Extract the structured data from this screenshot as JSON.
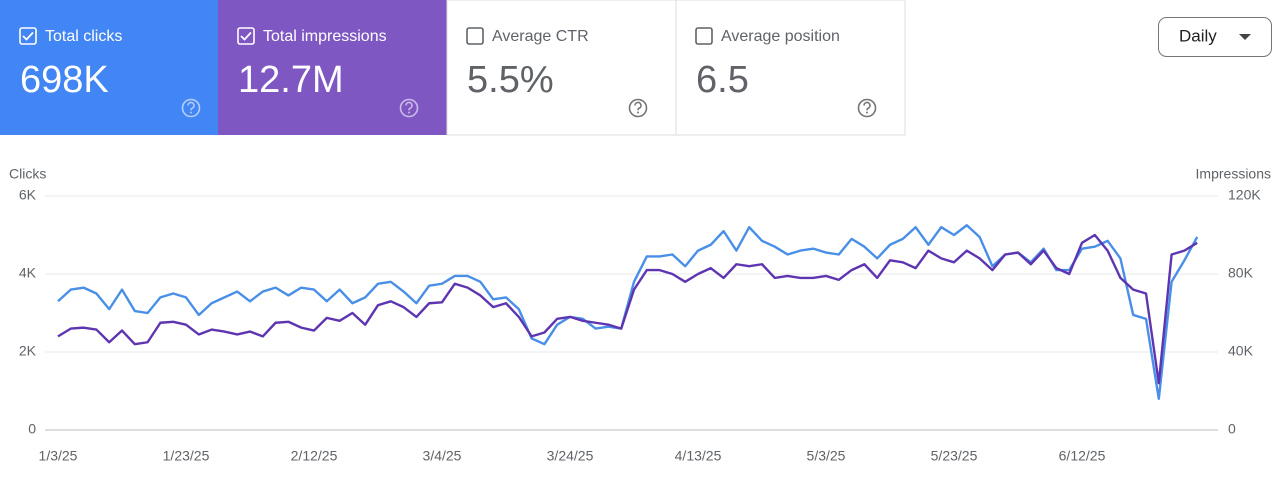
{
  "cards": [
    {
      "label": "Total clicks",
      "value": "698K",
      "checked": true,
      "color": "#4285f4"
    },
    {
      "label": "Total impressions",
      "value": "12.7M",
      "checked": true,
      "color": "#7e57c2"
    },
    {
      "label": "Average CTR",
      "value": "5.5%",
      "checked": false,
      "color": "#ffffff"
    },
    {
      "label": "Average position",
      "value": "6.5",
      "checked": false,
      "color": "#ffffff"
    }
  ],
  "period_selector": {
    "label": "Daily"
  },
  "chart_data": {
    "type": "line",
    "y_label": "Clicks",
    "y2_label": "Impressions",
    "x": [
      "1/3/25",
      "1/5/25",
      "1/7/25",
      "1/9/25",
      "1/11/25",
      "1/13/25",
      "1/15/25",
      "1/17/25",
      "1/19/25",
      "1/21/25",
      "1/23/25",
      "1/25/25",
      "1/27/25",
      "1/29/25",
      "1/31/25",
      "2/2/25",
      "2/4/25",
      "2/6/25",
      "2/8/25",
      "2/10/25",
      "2/12/25",
      "2/14/25",
      "2/16/25",
      "2/18/25",
      "2/20/25",
      "2/22/25",
      "2/24/25",
      "2/26/25",
      "2/28/25",
      "3/2/25",
      "3/4/25",
      "3/6/25",
      "3/8/25",
      "3/10/25",
      "3/12/25",
      "3/14/25",
      "3/16/25",
      "3/18/25",
      "3/20/25",
      "3/22/25",
      "3/24/25",
      "3/26/25",
      "3/28/25",
      "3/30/25",
      "4/1/25",
      "4/3/25",
      "4/5/25",
      "4/7/25",
      "4/9/25",
      "4/11/25",
      "4/13/25",
      "4/15/25",
      "4/17/25",
      "4/19/25",
      "4/21/25",
      "4/23/25",
      "4/25/25",
      "4/27/25",
      "4/29/25",
      "5/1/25",
      "5/3/25",
      "5/5/25",
      "5/7/25",
      "5/9/25",
      "5/11/25",
      "5/13/25",
      "5/15/25",
      "5/17/25",
      "5/19/25",
      "5/21/25",
      "5/23/25",
      "5/25/25",
      "5/27/25",
      "5/29/25",
      "5/31/25",
      "6/2/25",
      "6/4/25",
      "6/6/25",
      "6/8/25",
      "6/10/25",
      "6/12/25",
      "6/14/25",
      "6/16/25",
      "6/18/25",
      "6/20/25",
      "6/22/25",
      "6/24/25",
      "6/26/25",
      "6/28/25",
      "6/30/25"
    ],
    "xticks": [
      "1/3/25",
      "1/23/25",
      "2/12/25",
      "3/4/25",
      "3/24/25",
      "4/13/25",
      "5/3/25",
      "5/23/25",
      "6/12/25"
    ],
    "ylim": [
      0,
      6000
    ],
    "yticks": [
      0,
      {
        "value": 2000,
        "label": "2K"
      },
      {
        "value": 4000,
        "label": "4K"
      },
      {
        "value": 6000,
        "label": "6K"
      }
    ],
    "y2lim": [
      0,
      120000
    ],
    "y2ticks": [
      0,
      {
        "value": 40000,
        "label": "40K"
      },
      {
        "value": 80000,
        "label": "80K"
      },
      {
        "value": 120000,
        "label": "120K"
      }
    ],
    "grid": true,
    "series": [
      {
        "color": "#4a8fe7",
        "values": [
          3300,
          3600,
          3650,
          3500,
          3100,
          3600,
          3050,
          3000,
          3400,
          3500,
          3400,
          2950,
          3250,
          3400,
          3550,
          3300,
          3550,
          3650,
          3450,
          3650,
          3600,
          3300,
          3600,
          3250,
          3400,
          3750,
          3800,
          3550,
          3250,
          3700,
          3750,
          3950,
          3950,
          3800,
          3350,
          3400,
          3100,
          2350,
          2200,
          2700,
          2900,
          2850,
          2600,
          2650,
          2600,
          3800,
          4450,
          4450,
          4500,
          4200,
          4600,
          4750,
          5100,
          4600,
          5200,
          4850,
          4700,
          4500,
          4600,
          4650,
          4550,
          4500,
          4900,
          4700,
          4400,
          4750,
          4900,
          5200,
          4750,
          5200,
          5000,
          5250,
          4950,
          4200,
          4500,
          4550,
          4300,
          4650,
          4100,
          4100,
          4650,
          4700,
          4850,
          4400,
          2950,
          2850,
          800,
          3800,
          4350,
          4950
        ]
      },
      {
        "color": "#5e35b1",
        "axis": "y2",
        "values": [
          48000,
          52000,
          52500,
          51500,
          45000,
          51000,
          44000,
          45000,
          55000,
          55500,
          54000,
          49000,
          51500,
          50500,
          49000,
          50500,
          48000,
          55000,
          55500,
          52500,
          51000,
          57500,
          56000,
          60000,
          54000,
          64000,
          66000,
          63000,
          58000,
          65000,
          65500,
          75000,
          73000,
          69000,
          63000,
          65000,
          58000,
          48000,
          50000,
          57000,
          58000,
          56000,
          55000,
          54000,
          52000,
          72000,
          82000,
          82000,
          80000,
          76000,
          80000,
          83000,
          78000,
          85000,
          84000,
          85000,
          78000,
          79000,
          78000,
          78000,
          79000,
          77000,
          82000,
          85000,
          78000,
          87000,
          86000,
          83000,
          92000,
          88000,
          86000,
          92000,
          88000,
          82000,
          90000,
          91000,
          85000,
          92000,
          83000,
          80000,
          96000,
          100000,
          92000,
          78000,
          72000,
          70000,
          24000,
          90000,
          92000,
          96000
        ]
      }
    ]
  }
}
